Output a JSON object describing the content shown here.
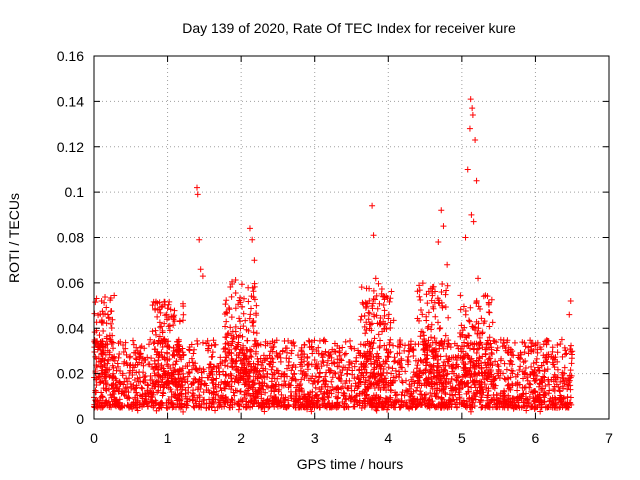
{
  "chart_data": {
    "type": "scatter",
    "title": "Day 139 of 2020, Rate Of TEC Index for receiver kure",
    "xlabel": "GPS time / hours",
    "ylabel": "ROTI / TECUs",
    "xlim": [
      0,
      7
    ],
    "ylim": [
      0,
      0.16
    ],
    "xticks": [
      "0",
      "1",
      "2",
      "3",
      "4",
      "5",
      "6",
      "7"
    ],
    "yticks": [
      "0",
      "0.02",
      "0.04",
      "0.06",
      "0.08",
      "0.1",
      "0.12",
      "0.14",
      "0.16"
    ],
    "grid": true,
    "marker": "plus",
    "color": "#ff0000",
    "x_range_of_data": [
      0,
      6.5
    ],
    "notable_points": [
      {
        "x": 1.4,
        "y": 0.102
      },
      {
        "x": 1.41,
        "y": 0.099
      },
      {
        "x": 1.43,
        "y": 0.079
      },
      {
        "x": 1.45,
        "y": 0.066
      },
      {
        "x": 1.48,
        "y": 0.063
      },
      {
        "x": 2.12,
        "y": 0.084
      },
      {
        "x": 2.15,
        "y": 0.079
      },
      {
        "x": 2.18,
        "y": 0.07
      },
      {
        "x": 3.78,
        "y": 0.094
      },
      {
        "x": 3.8,
        "y": 0.081
      },
      {
        "x": 3.83,
        "y": 0.062
      },
      {
        "x": 4.72,
        "y": 0.092
      },
      {
        "x": 4.75,
        "y": 0.085
      },
      {
        "x": 4.68,
        "y": 0.078
      },
      {
        "x": 4.8,
        "y": 0.068
      },
      {
        "x": 5.12,
        "y": 0.141
      },
      {
        "x": 5.14,
        "y": 0.137
      },
      {
        "x": 5.15,
        "y": 0.134
      },
      {
        "x": 5.11,
        "y": 0.128
      },
      {
        "x": 5.18,
        "y": 0.123
      },
      {
        "x": 5.08,
        "y": 0.11
      },
      {
        "x": 5.2,
        "y": 0.105
      },
      {
        "x": 5.13,
        "y": 0.09
      },
      {
        "x": 5.16,
        "y": 0.087
      },
      {
        "x": 5.05,
        "y": 0.08
      },
      {
        "x": 5.22,
        "y": 0.062
      },
      {
        "x": 6.48,
        "y": 0.052
      },
      {
        "x": 6.46,
        "y": 0.046
      }
    ],
    "baseline_level": {
      "typical_min": 0.005,
      "typical_max": 0.035
    },
    "bursts": [
      {
        "x_center": 0.05,
        "y_peak": 0.055
      },
      {
        "x_center": 1.0,
        "y_peak": 0.053
      },
      {
        "x_center": 2.0,
        "y_peak": 0.062
      },
      {
        "x_center": 3.85,
        "y_peak": 0.06
      },
      {
        "x_center": 4.6,
        "y_peak": 0.06
      },
      {
        "x_center": 5.2,
        "y_peak": 0.055
      }
    ]
  }
}
